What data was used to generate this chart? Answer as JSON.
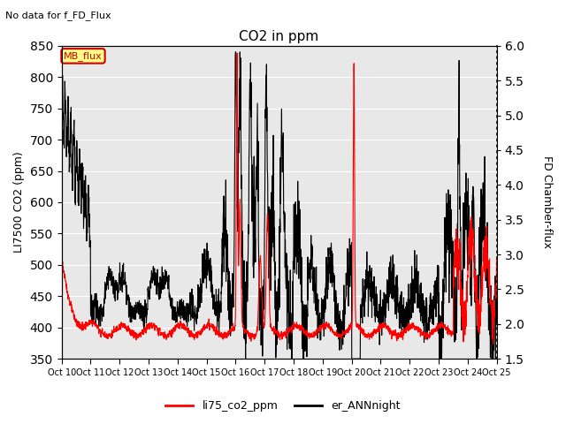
{
  "title": "CO2 in ppm",
  "suptitle": "No data for f_FD_Flux",
  "ylabel_left": "LI7500 CO2 (ppm)",
  "ylabel_right": "FD Chamber-flux",
  "ylim_left": [
    350,
    850
  ],
  "ylim_right": [
    1.5,
    6.0
  ],
  "yticks_left": [
    350,
    400,
    450,
    500,
    550,
    600,
    650,
    700,
    750,
    800,
    850
  ],
  "yticks_right": [
    1.5,
    2.0,
    2.5,
    3.0,
    3.5,
    4.0,
    4.5,
    5.0,
    5.5,
    6.0
  ],
  "xtick_labels": [
    "Oct 10",
    "Oct 11",
    "Oct 12",
    "Oct 13",
    "Oct 14",
    "Oct 15",
    "Oct 16",
    "Oct 17",
    "Oct 18",
    "Oct 19",
    "Oct 20",
    "Oct 21",
    "Oct 22",
    "Oct 23",
    "Oct 24",
    "Oct 25"
  ],
  "legend_entries": [
    "li75_co2_ppm",
    "er_ANNnight"
  ],
  "legend_colors": [
    "#ff0000",
    "#000000"
  ],
  "background_color": "#e8e8e8",
  "grid_color": "#ffffff",
  "line1_color": "#ff0000",
  "line2_color": "#000000",
  "line_width": 0.8
}
